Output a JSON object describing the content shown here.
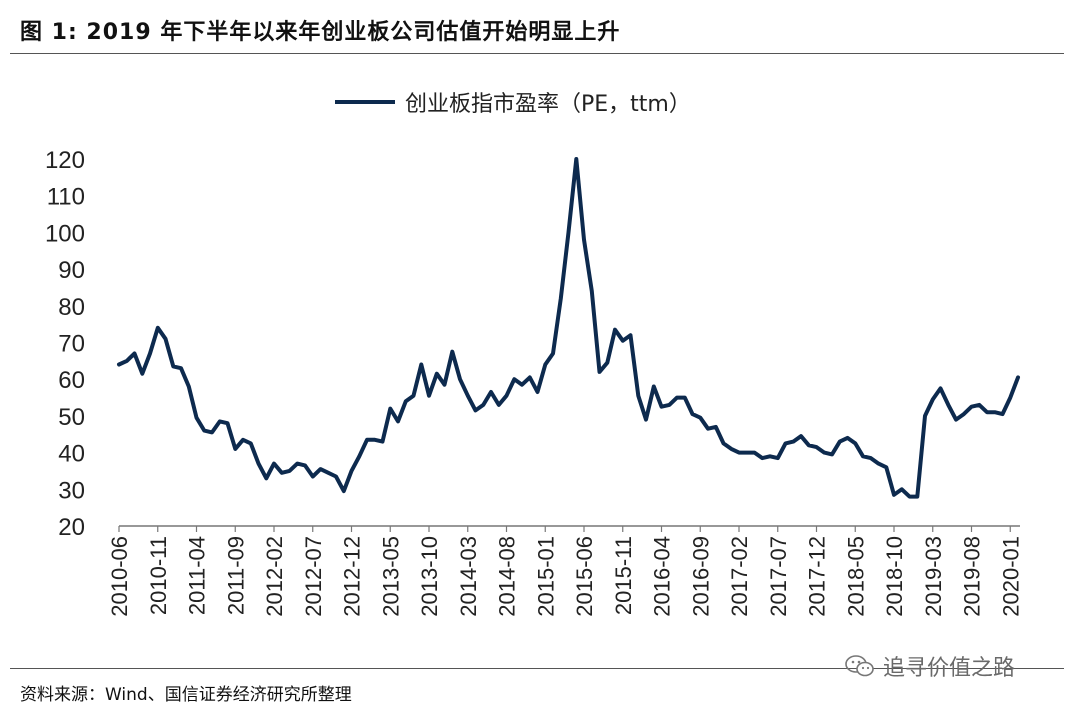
{
  "header": {
    "title": "图  1:  2019 年下半年以来年创业板公司估值开始明显上升"
  },
  "footer": {
    "source": "资料来源：Wind、国信证券经济研究所整理"
  },
  "watermark": {
    "text": "追寻价值之路",
    "icon": "wechat-icon"
  },
  "colors": {
    "series": "#0d2a4e"
  },
  "chart_data": {
    "type": "line",
    "title": "图  1:  2019 年下半年以来年创业板公司估值开始明显上升",
    "xlabel": "",
    "ylabel": "",
    "ylim": [
      20,
      120
    ],
    "yticks": [
      20,
      30,
      40,
      50,
      60,
      70,
      80,
      90,
      100,
      110,
      120
    ],
    "xticks": [
      "2010-06",
      "2010-11",
      "2011-04",
      "2011-09",
      "2012-02",
      "2012-07",
      "2012-12",
      "2013-05",
      "2013-10",
      "2014-03",
      "2014-08",
      "2015-01",
      "2015-06",
      "2015-11",
      "2016-04",
      "2016-09",
      "2017-02",
      "2017-07",
      "2017-12",
      "2018-05",
      "2018-10",
      "2019-03",
      "2019-08",
      "2020-01"
    ],
    "legend": "top-center",
    "grid": false,
    "series": [
      {
        "name": "创业板指市盈率（PE，ttm）",
        "x_start": "2010-06",
        "frequency": "monthly",
        "values": [
          64,
          65,
          67,
          61.5,
          67,
          74,
          71,
          63.5,
          63,
          58,
          49.5,
          46,
          45.5,
          48.5,
          48,
          41,
          43.5,
          42.5,
          37,
          33,
          37,
          34.5,
          35,
          37,
          36.5,
          33.5,
          35.5,
          34.5,
          33.5,
          29.5,
          35,
          39,
          43.5,
          43.5,
          43,
          52,
          48.5,
          54,
          55.5,
          64,
          55.5,
          61.5,
          58.5,
          67.5,
          60,
          55.5,
          51.5,
          53,
          56.5,
          53,
          55.5,
          60,
          58.5,
          60.5,
          56.5,
          64,
          67,
          82,
          100,
          120,
          98,
          84,
          62,
          64.5,
          73.5,
          70.5,
          72,
          55.5,
          49,
          58,
          52.5,
          53,
          55,
          55,
          50.5,
          49.5,
          46.5,
          47,
          42.5,
          41,
          40,
          40,
          40,
          38.5,
          39,
          38.5,
          42.5,
          43,
          44.5,
          42,
          41.5,
          40,
          39.5,
          43,
          44,
          42.5,
          39,
          38.5,
          37,
          36,
          28.5,
          30,
          28,
          28,
          50,
          54.5,
          57.5,
          53,
          49,
          50.5,
          52.5,
          53,
          51,
          51,
          50.5,
          55,
          60.5
        ]
      }
    ]
  }
}
